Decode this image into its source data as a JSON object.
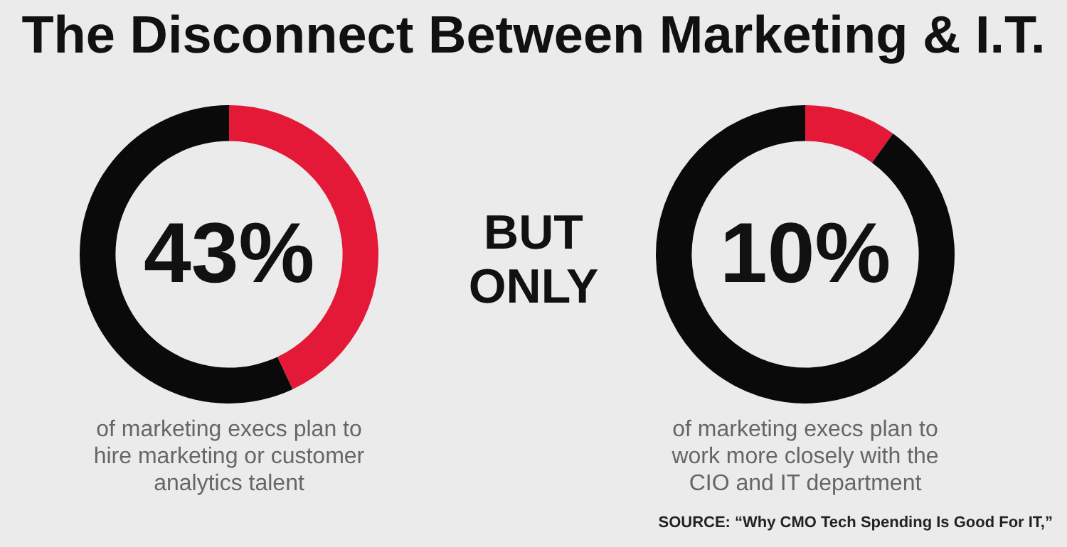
{
  "chart_data": [
    {
      "type": "donut",
      "title": "The Disconnect Between Marketing & I.T.",
      "categories": [
        null,
        null
      ],
      "values": [
        43,
        57
      ],
      "colors": [
        "#e31937",
        "#0a0a0a"
      ],
      "value_labels": [
        "43%",
        null
      ],
      "annotations": [
        "of marketing execs plan to hire marketing or customer analytics talent",
        "BUT ONLY"
      ]
    },
    {
      "type": "donut",
      "categories": [
        null,
        null
      ],
      "values": [
        10,
        90
      ],
      "colors": [
        "#e31937",
        "#0a0a0a"
      ],
      "value_labels": [
        "10%",
        null
      ],
      "annotations": [
        "of marketing execs plan to work more closely with the CIO and IT department",
        "SOURCE: “Why CMO Tech Spending Is Good For IT,”"
      ]
    }
  ]
}
